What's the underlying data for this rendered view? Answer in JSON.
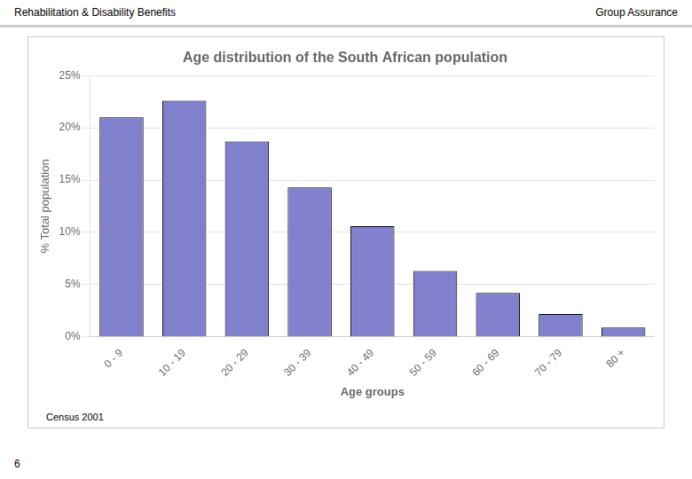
{
  "chart_data": {
    "type": "bar",
    "title": "Age distribution of the South African population",
    "categories": [
      "0 - 9",
      "10 - 19",
      "20 - 29",
      "30 - 39",
      "40 - 49",
      "50 - 59",
      "60 - 69",
      "70 - 79",
      "80 +"
    ],
    "values": [
      0.21,
      0.226,
      0.187,
      0.143,
      0.106,
      0.063,
      0.042,
      0.022,
      0.009
    ],
    "color": "#8080cc",
    "xlabel": "Age groups",
    "ylabel": "% Total population",
    "ylim": [
      0,
      0.25
    ],
    "yticks": [
      {
        "value": 0,
        "label": "0%"
      },
      {
        "value": 0.05,
        "label": "5%"
      },
      {
        "value": 0.1,
        "label": "10%"
      },
      {
        "value": 0.15,
        "label": "15%"
      },
      {
        "value": 0.2,
        "label": "20%"
      },
      {
        "value": 0.25,
        "label": "25%"
      }
    ],
    "grid": true,
    "annotations": [
      "Rehabilitation & Disability Benefits",
      "Group Assurance",
      "Census 2001",
      "6"
    ]
  }
}
